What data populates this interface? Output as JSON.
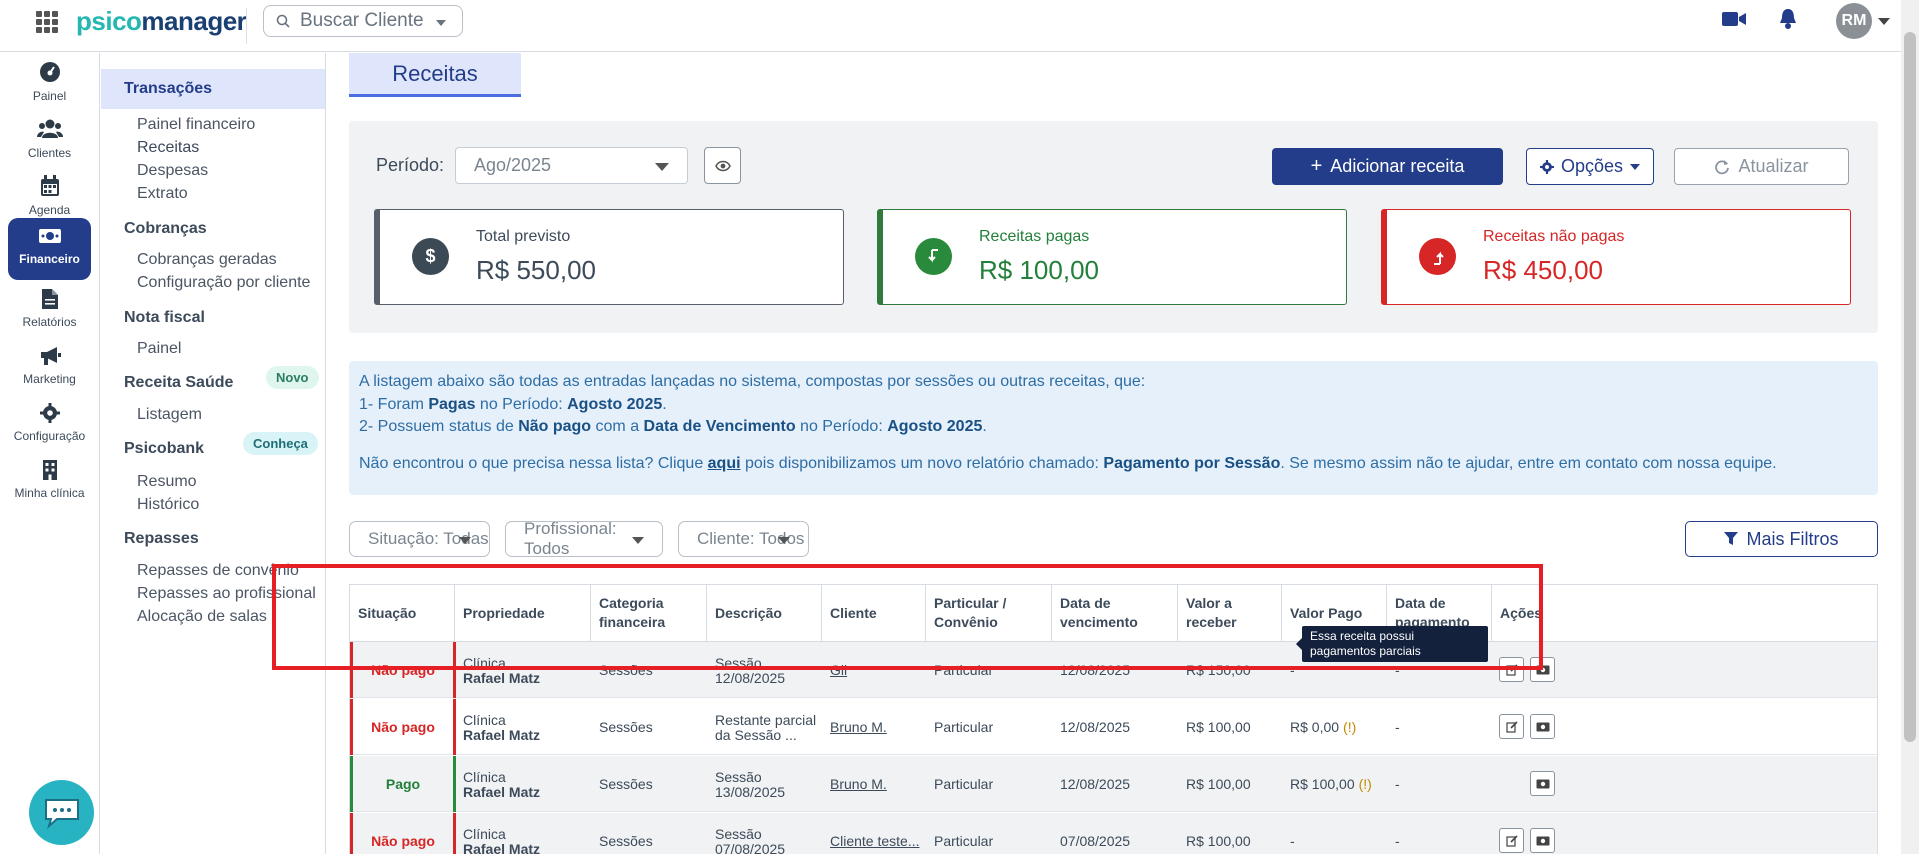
{
  "app": {
    "logo_part1": "psico",
    "logo_part2": "manager",
    "search_placeholder": "Buscar Cliente",
    "avatar_initials": "RM"
  },
  "leftnav": [
    {
      "label": "Painel",
      "icon": "gauge-icon"
    },
    {
      "label": "Clientes",
      "icon": "users-icon"
    },
    {
      "label": "Agenda",
      "icon": "calendar-icon"
    },
    {
      "label": "Financeiro",
      "icon": "money-icon",
      "active": true
    },
    {
      "label": "Relatórios",
      "icon": "file-icon"
    },
    {
      "label": "Marketing",
      "icon": "megaphone-icon"
    },
    {
      "label": "Configuração",
      "icon": "gear-icon"
    },
    {
      "label": "Minha clínica",
      "icon": "building-icon"
    }
  ],
  "submenu": {
    "transacoes": "Transações",
    "painel_financeiro": "Painel financeiro",
    "receitas": "Receitas",
    "despesas": "Despesas",
    "extrato": "Extrato",
    "cobrancas": "Cobranças",
    "cobrancas_geradas": "Cobranças geradas",
    "config_cliente": "Configuração por cliente",
    "nota_fiscal": "Nota fiscal",
    "nf_painel": "Painel",
    "receita_saude": "Receita Saúde",
    "novo": "Novo",
    "listagem": "Listagem",
    "psicobank": "Psicobank",
    "conheca": "Conheça",
    "resumo": "Resumo",
    "historico": "Histórico",
    "repasses": "Repasses",
    "repasses_convenio": "Repasses de convênio",
    "repasses_profissional": "Repasses ao profissional",
    "alocacao": "Alocação de salas"
  },
  "page": {
    "tab": "Receitas"
  },
  "panel": {
    "periodo_label": "Período:",
    "periodo_value": "Ago/2025",
    "add_label": "Adicionar receita",
    "opcoes_label": "Opções",
    "atualizar_label": "Atualizar"
  },
  "cards": {
    "previsto_title": "Total previsto",
    "previsto_value": "R$ 550,00",
    "pagas_title": "Receitas pagas",
    "pagas_value": "R$ 100,00",
    "nao_title": "Receitas não pagas",
    "nao_value": "R$ 450,00"
  },
  "info": {
    "line1": "A listagem abaixo são todas as entradas lançadas no sistema, compostas por sessões ou outras receitas, que:",
    "l2a": "1- Foram ",
    "l2b": "Pagas",
    "l2c": " no Período: ",
    "l2d": "Agosto 2025",
    "l2e": ".",
    "l3a": "2- Possuem status de ",
    "l3b": "Não pago",
    "l3c": " com a ",
    "l3d": "Data de Vencimento",
    "l3e": " no Período: ",
    "l3f": "Agosto 2025",
    "l3g": ".",
    "l4a": "Não encontrou o que precisa nessa lista? Clique ",
    "l4b": "aqui",
    "l4c": " pois disponibilizamos um novo relatório chamado: ",
    "l4d": "Pagamento por Sessão",
    "l4e": ". Se mesmo assim não te ajudar, entre em contato com nossa equipe."
  },
  "filters": {
    "situacao": "Situação: Todas",
    "profissional": "Profissional: Todos",
    "cliente": "Cliente: Todos",
    "mais": "Mais Filtros"
  },
  "table": {
    "headers": [
      "Situação",
      "Propriedade",
      "Categoria financeira",
      "Descrição",
      "Cliente",
      "Particular / Convênio",
      "Data de vencimento",
      "Valor a receber",
      "Valor Pago",
      "Data de pagamento",
      "Ações"
    ],
    "rows": [
      {
        "situacao": "Não pago",
        "prop1": "Clínica",
        "prop2": "Rafael Matz",
        "categoria": "Sessões",
        "desc1": "Sessão",
        "desc2": "12/08/2025",
        "cliente": "Gil",
        "tipo": "Particular",
        "venc": "12/08/2025",
        "receber": "R$ 150,00",
        "pago": "-",
        "warn": "",
        "data_pag": "-"
      },
      {
        "situacao": "Não pago",
        "prop1": "Clínica",
        "prop2": "Rafael Matz",
        "categoria": "Sessões",
        "desc1": "Restante parcial",
        "desc2": "da Sessão ...",
        "cliente": "Bruno M.",
        "tipo": "Particular",
        "venc": "12/08/2025",
        "receber": "R$ 100,00",
        "pago": "R$ 0,00",
        "warn": "(!)",
        "data_pag": "-"
      },
      {
        "situacao": "Pago",
        "prop1": "Clínica",
        "prop2": "Rafael Matz",
        "categoria": "Sessões",
        "desc1": "Sessão",
        "desc2": "13/08/2025",
        "cliente": "Bruno M.",
        "tipo": "Particular",
        "venc": "12/08/2025",
        "receber": "R$ 100,00",
        "pago": "R$ 100,00",
        "warn": "(!)",
        "data_pag": "-"
      },
      {
        "situacao": "Não pago",
        "prop1": "Clínica",
        "prop2": "Rafael Matz",
        "categoria": "Sessões",
        "desc1": "Sessão",
        "desc2": "07/08/2025",
        "cliente": "Cliente teste...",
        "tipo": "Particular",
        "venc": "07/08/2025",
        "receber": "R$ 100,00",
        "pago": "-",
        "warn": "",
        "data_pag": "-"
      }
    ]
  },
  "tooltip": "Essa receita possui pagamentos parciais"
}
